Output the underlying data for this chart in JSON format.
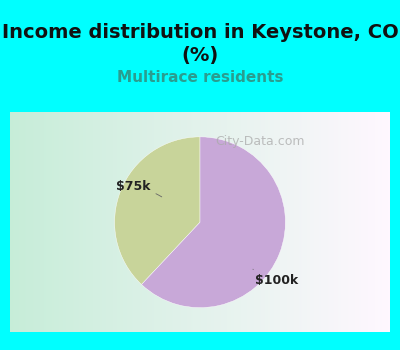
{
  "title": "Income distribution in Keystone, CO\n(%)",
  "subtitle": "Multirace residents",
  "title_color": "#111111",
  "subtitle_color": "#2a9d8f",
  "title_fontsize": 14,
  "subtitle_fontsize": 11,
  "title_bg_color": "#00ffff",
  "chart_bg_left": "#c8ecd8",
  "chart_bg_right": "#f0f8ff",
  "slices": [
    {
      "label": "$75k",
      "value": 38,
      "color": "#c8d49a"
    },
    {
      "label": "$100k",
      "value": 62,
      "color": "#c8a8d8"
    }
  ],
  "label_fontsize": 9,
  "label_color": "#222222",
  "watermark": "City-Data.com",
  "watermark_color": "#aaaaaa",
  "watermark_fontsize": 9,
  "cyan_border": "#00ffff",
  "border_width": 8
}
